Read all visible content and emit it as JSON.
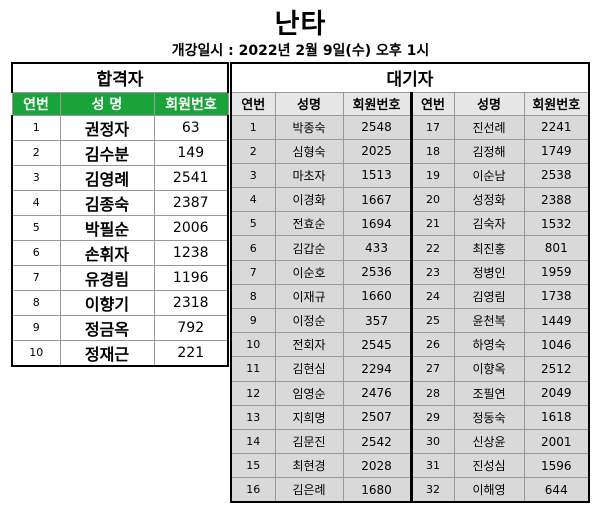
{
  "title": "난타",
  "subtitle": "개강일시 : 2022년 2월 9일(수) 오후 1시",
  "passed": {
    "heading": "합격자",
    "columns": [
      "연번",
      "성  명",
      "회원번호"
    ],
    "rows": [
      {
        "no": "1",
        "name": "권정자",
        "member": "63"
      },
      {
        "no": "2",
        "name": "김수분",
        "member": "149"
      },
      {
        "no": "3",
        "name": "김영례",
        "member": "2541"
      },
      {
        "no": "4",
        "name": "김종숙",
        "member": "2387"
      },
      {
        "no": "5",
        "name": "박필순",
        "member": "2006"
      },
      {
        "no": "6",
        "name": "손휘자",
        "member": "1238"
      },
      {
        "no": "7",
        "name": "유경림",
        "member": "1196"
      },
      {
        "no": "8",
        "name": "이향기",
        "member": "2318"
      },
      {
        "no": "9",
        "name": "정금옥",
        "member": "792"
      },
      {
        "no": "10",
        "name": "정재근",
        "member": "221"
      }
    ]
  },
  "waiting": {
    "heading": "대기자",
    "columns": [
      "연번",
      "성명",
      "회원번호",
      "연번",
      "성명",
      "회원번호"
    ],
    "rows": [
      {
        "no1": "1",
        "name1": "박종숙",
        "member1": "2548",
        "no2": "17",
        "name2": "진선례",
        "member2": "2241"
      },
      {
        "no1": "2",
        "name1": "심형숙",
        "member1": "2025",
        "no2": "18",
        "name2": "김정해",
        "member2": "1749"
      },
      {
        "no1": "3",
        "name1": "마초자",
        "member1": "1513",
        "no2": "19",
        "name2": "이순남",
        "member2": "2538"
      },
      {
        "no1": "4",
        "name1": "이경화",
        "member1": "1667",
        "no2": "20",
        "name2": "성정화",
        "member2": "2388"
      },
      {
        "no1": "5",
        "name1": "전효순",
        "member1": "1694",
        "no2": "21",
        "name2": "김숙자",
        "member2": "1532"
      },
      {
        "no1": "6",
        "name1": "김갑순",
        "member1": "433",
        "no2": "22",
        "name2": "최진홍",
        "member2": "801"
      },
      {
        "no1": "7",
        "name1": "이순호",
        "member1": "2536",
        "no2": "23",
        "name2": "정병인",
        "member2": "1959"
      },
      {
        "no1": "8",
        "name1": "이재규",
        "member1": "1660",
        "no2": "24",
        "name2": "김영림",
        "member2": "1738"
      },
      {
        "no1": "9",
        "name1": "이정순",
        "member1": "357",
        "no2": "25",
        "name2": "윤천복",
        "member2": "1449"
      },
      {
        "no1": "10",
        "name1": "전회자",
        "member1": "2545",
        "no2": "26",
        "name2": "하영숙",
        "member2": "1046"
      },
      {
        "no1": "11",
        "name1": "김현심",
        "member1": "2294",
        "no2": "27",
        "name2": "이향옥",
        "member2": "2512"
      },
      {
        "no1": "12",
        "name1": "임영순",
        "member1": "2476",
        "no2": "28",
        "name2": "조필연",
        "member2": "2049"
      },
      {
        "no1": "13",
        "name1": "지희명",
        "member1": "2507",
        "no2": "29",
        "name2": "정동숙",
        "member2": "1618"
      },
      {
        "no1": "14",
        "name1": "김문진",
        "member1": "2542",
        "no2": "30",
        "name2": "신상윤",
        "member2": "2001"
      },
      {
        "no1": "15",
        "name1": "최현경",
        "member1": "2028",
        "no2": "31",
        "name2": "진성심",
        "member2": "1596"
      },
      {
        "no1": "16",
        "name1": "김은례",
        "member1": "1680",
        "no2": "32",
        "name2": "이해영",
        "member2": "644"
      }
    ]
  }
}
